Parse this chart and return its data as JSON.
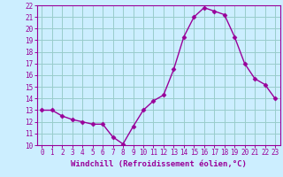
{
  "x": [
    0,
    1,
    2,
    3,
    4,
    5,
    6,
    7,
    8,
    9,
    10,
    11,
    12,
    13,
    14,
    15,
    16,
    17,
    18,
    19,
    20,
    21,
    22,
    23
  ],
  "y": [
    13.0,
    13.0,
    12.5,
    12.2,
    12.0,
    11.8,
    11.8,
    10.7,
    10.1,
    11.6,
    13.0,
    13.8,
    14.3,
    16.5,
    19.3,
    21.0,
    21.8,
    21.5,
    21.2,
    19.3,
    17.0,
    15.7,
    15.2,
    14.0
  ],
  "line_color": "#990099",
  "marker": "D",
  "marker_size": 2.5,
  "bg_color": "#cceeff",
  "grid_color": "#99cccc",
  "xlabel": "Windchill (Refroidissement éolien,°C)",
  "xlabel_color": "#990099",
  "tick_color": "#990099",
  "ylim": [
    10,
    22
  ],
  "xlim": [
    -0.5,
    23.5
  ],
  "yticks": [
    10,
    11,
    12,
    13,
    14,
    15,
    16,
    17,
    18,
    19,
    20,
    21,
    22
  ],
  "xticks": [
    0,
    1,
    2,
    3,
    4,
    5,
    6,
    7,
    8,
    9,
    10,
    11,
    12,
    13,
    14,
    15,
    16,
    17,
    18,
    19,
    20,
    21,
    22,
    23
  ],
  "line_width": 1.0,
  "spine_color": "#990099",
  "tick_fontsize": 5.5,
  "xlabel_fontsize": 6.5,
  "xlabel_fontweight": "bold"
}
